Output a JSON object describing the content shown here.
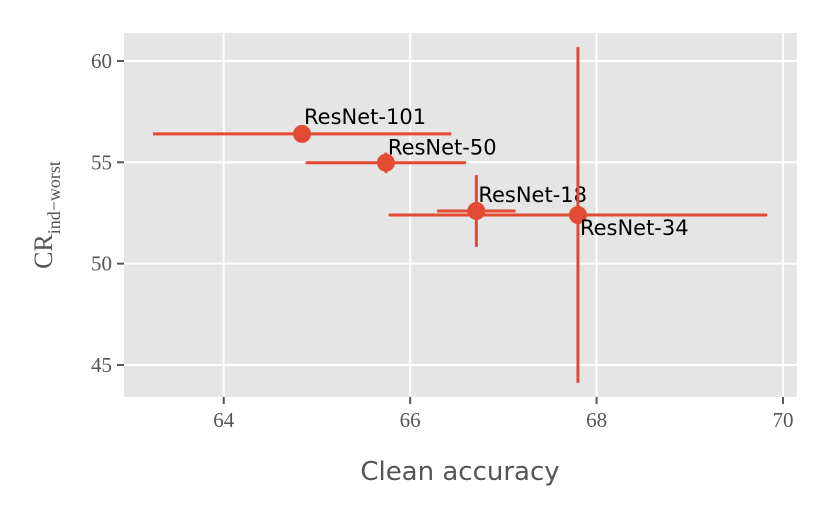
{
  "chart_data": {
    "type": "scatter",
    "x_label": "Clean accuracy",
    "y_label": "CR",
    "y_label_subscript": "ind−worst",
    "color": "#e24a33",
    "points": [
      {
        "label": "ResNet-101",
        "x": 64.84,
        "y": 56.4,
        "xerr": 1.6,
        "yerr": 0
      },
      {
        "label": "ResNet-50",
        "x": 65.74,
        "y": 54.98,
        "xerr": 0.86,
        "yerr": 0.5
      },
      {
        "label": "ResNet-18",
        "x": 66.71,
        "y": 52.6,
        "xerr": 0.42,
        "yerr": 1.77
      },
      {
        "label": "ResNet-34",
        "x": 67.8,
        "y": 52.4,
        "xerr": 2.03,
        "yerr": 8.28
      }
    ],
    "xlim": [
      62.93,
      70.15
    ],
    "xticks": [
      64,
      66,
      68,
      70
    ],
    "ylim": [
      43.42,
      61.38
    ],
    "yticks": [
      45,
      50,
      55,
      60
    ],
    "grid": true
  }
}
